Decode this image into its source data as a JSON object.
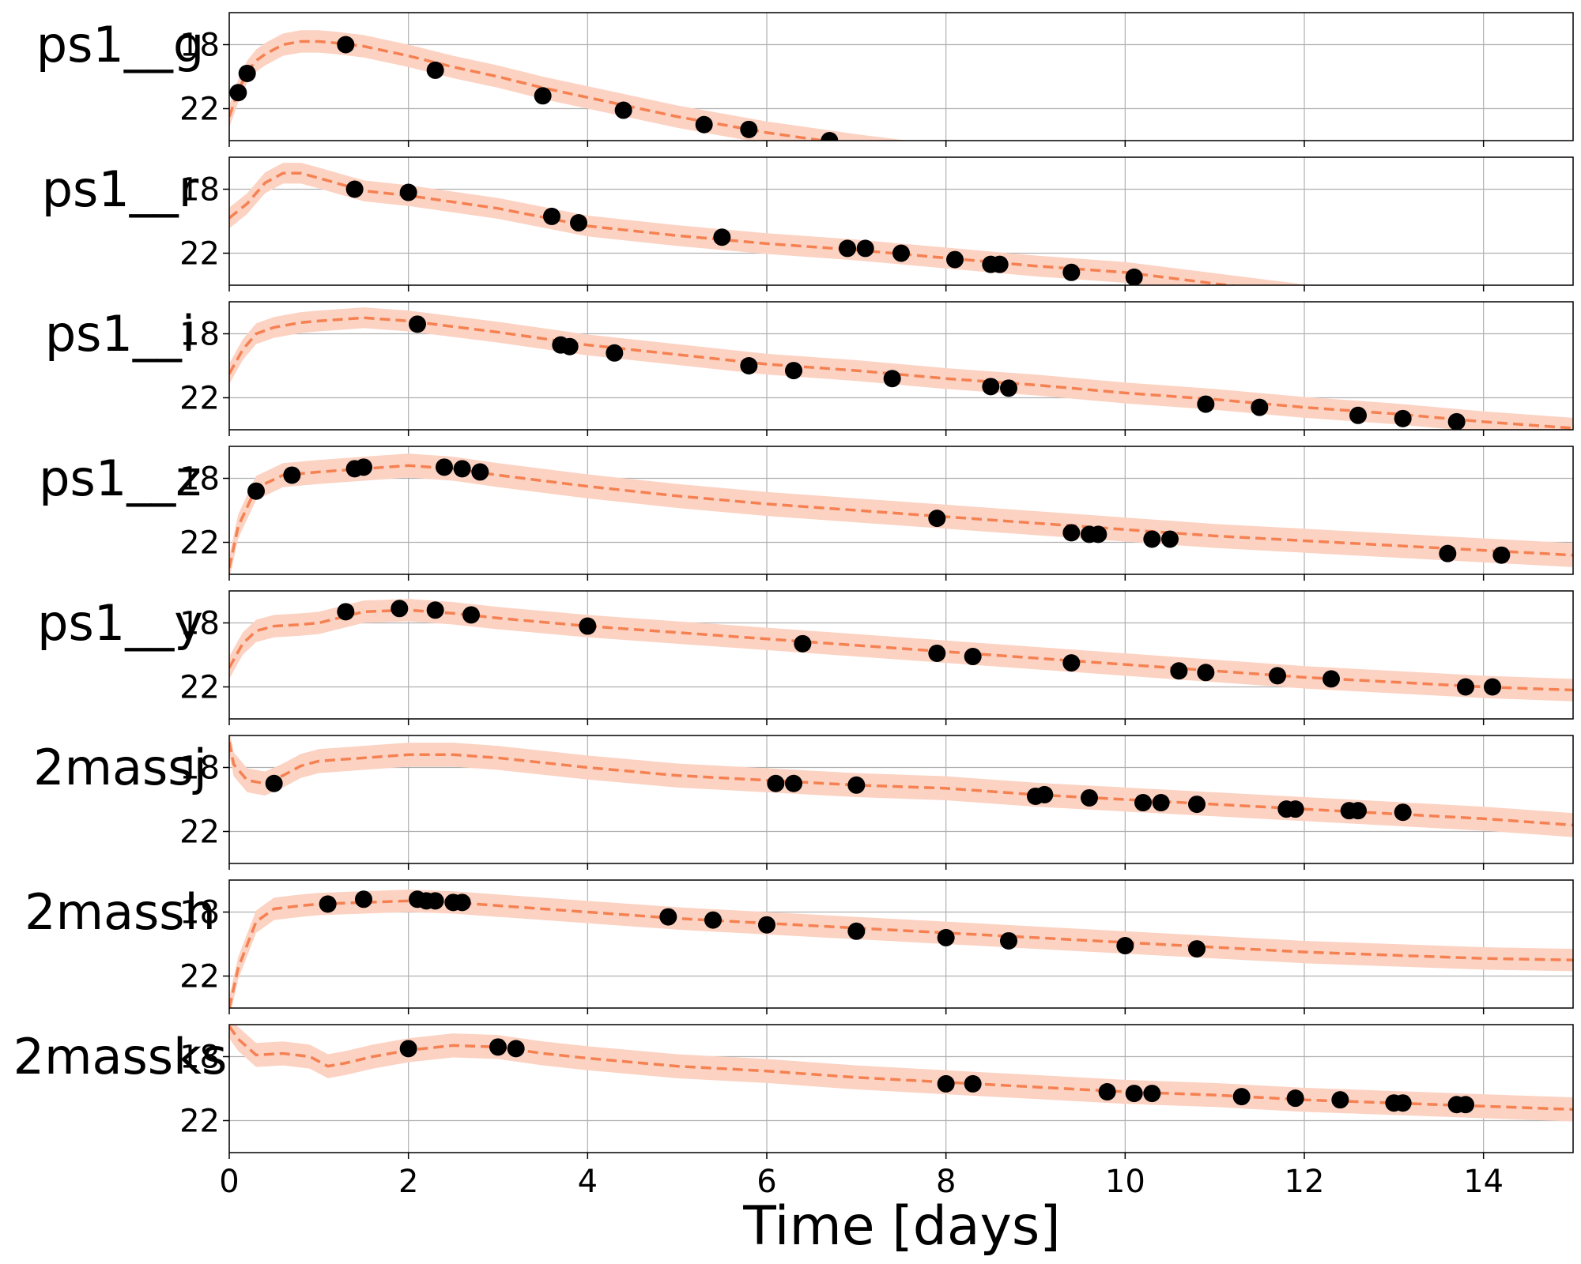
{
  "chart_data": {
    "type": "scatter",
    "xlabel": "Time [days]",
    "xlim": [
      0,
      15
    ],
    "x_ticks": [
      0,
      2,
      4,
      6,
      8,
      10,
      12,
      14
    ],
    "x_tick_labels": [
      "0",
      "2",
      "4",
      "6",
      "8",
      "10",
      "12",
      "14"
    ],
    "ylim": [
      24,
      16
    ],
    "y_inverted": true,
    "y_ticks": [
      18,
      22
    ],
    "y_tick_labels": [
      "18",
      "22"
    ],
    "grid": true,
    "colors": {
      "model_line": "#f58152",
      "model_band": "#fcd2c2",
      "points": "#000000",
      "grid": "#b0b0b0"
    },
    "panels": [
      {
        "label": "ps1__g",
        "points": {
          "x": [
            0.1,
            0.2,
            1.3,
            2.3,
            3.5,
            4.4,
            5.3,
            5.8,
            6.7
          ],
          "y": [
            21.0,
            19.8,
            18.0,
            19.6,
            21.2,
            22.1,
            23.0,
            23.3,
            24.0
          ]
        },
        "model": {
          "x": [
            0,
            0.1,
            0.2,
            0.3,
            0.4,
            0.5,
            0.6,
            0.8,
            1.0,
            1.2,
            1.5,
            2.0,
            2.5,
            3.0,
            3.5,
            4.0,
            5.0,
            6.0,
            7.0,
            8.0,
            9.0,
            10.0
          ],
          "y": [
            22.5,
            20.9,
            19.7,
            19.0,
            18.6,
            18.3,
            18.0,
            17.8,
            17.8,
            17.9,
            18.1,
            18.7,
            19.4,
            20.0,
            20.7,
            21.3,
            22.5,
            23.5,
            24.3,
            25.0,
            25.5,
            26.0
          ]
        },
        "band_width": 1.4
      },
      {
        "label": "ps1__r",
        "points": {
          "x": [
            1.4,
            2.0,
            3.6,
            3.9,
            5.5,
            6.9,
            7.1,
            7.5,
            8.1,
            8.5,
            8.6,
            9.4,
            10.1
          ],
          "y": [
            18.0,
            18.2,
            19.7,
            20.1,
            21.0,
            21.7,
            21.7,
            22.0,
            22.4,
            22.7,
            22.7,
            23.2,
            23.5
          ]
        },
        "model": {
          "x": [
            0,
            0.2,
            0.4,
            0.6,
            0.8,
            1.0,
            1.5,
            2.0,
            3.0,
            4.0,
            5.0,
            6.0,
            7.0,
            8.0,
            9.0,
            10.0,
            11.0,
            12.0,
            13.0,
            14.0,
            15.0
          ],
          "y": [
            19.8,
            18.9,
            17.6,
            17.0,
            17.0,
            17.3,
            18.1,
            18.4,
            19.2,
            20.3,
            20.9,
            21.4,
            21.8,
            22.3,
            22.8,
            23.2,
            23.9,
            24.6,
            25.2,
            25.8,
            26.4
          ]
        },
        "band_width": 1.3
      },
      {
        "label": "ps1__i",
        "points": {
          "x": [
            2.1,
            3.7,
            3.8,
            4.3,
            5.8,
            6.3,
            7.4,
            8.5,
            8.7,
            10.9,
            11.5,
            12.6,
            13.1,
            13.7
          ],
          "y": [
            17.4,
            18.7,
            18.8,
            19.2,
            20.0,
            20.3,
            20.8,
            21.3,
            21.4,
            22.4,
            22.6,
            23.1,
            23.3,
            23.5
          ]
        },
        "model": {
          "x": [
            0,
            0.15,
            0.3,
            0.5,
            0.8,
            1.0,
            1.5,
            2.0,
            3.0,
            4.0,
            5.0,
            6.0,
            7.0,
            8.0,
            9.0,
            10.0,
            11.0,
            12.0,
            13.0,
            14.0,
            15.0
          ],
          "y": [
            20.5,
            19.0,
            18.0,
            17.6,
            17.3,
            17.2,
            17.0,
            17.2,
            17.9,
            18.7,
            19.3,
            19.9,
            20.3,
            20.8,
            21.2,
            21.7,
            22.1,
            22.6,
            23.0,
            23.5,
            23.9
          ]
        },
        "band_width": 1.3
      },
      {
        "label": "ps1__z",
        "points": {
          "x": [
            0.3,
            0.7,
            1.4,
            1.5,
            2.4,
            2.6,
            2.8,
            7.9,
            9.4,
            9.6,
            9.7,
            10.3,
            10.5,
            13.6,
            14.2
          ],
          "y": [
            18.8,
            17.8,
            17.4,
            17.3,
            17.3,
            17.4,
            17.6,
            20.5,
            21.4,
            21.5,
            21.5,
            21.8,
            21.8,
            22.7,
            22.8
          ]
        },
        "model": {
          "x": [
            0,
            0.1,
            0.3,
            0.6,
            1.0,
            1.5,
            2.0,
            2.5,
            3.0,
            4.0,
            5.0,
            6.0,
            7.0,
            8.0,
            9.0,
            10.0,
            11.0,
            12.0,
            13.0,
            14.0,
            15.0
          ],
          "y": [
            23.6,
            21.0,
            18.6,
            17.8,
            17.6,
            17.4,
            17.2,
            17.4,
            17.8,
            18.5,
            19.1,
            19.6,
            20.0,
            20.4,
            20.8,
            21.2,
            21.6,
            21.9,
            22.2,
            22.5,
            22.8
          ]
        },
        "band_width": 1.5
      },
      {
        "label": "ps1__y",
        "points": {
          "x": [
            1.3,
            1.9,
            2.3,
            2.7,
            4.0,
            6.4,
            7.9,
            8.3,
            9.4,
            10.6,
            10.9,
            11.7,
            12.3,
            13.8,
            14.1
          ],
          "y": [
            17.3,
            17.1,
            17.2,
            17.5,
            18.2,
            19.3,
            19.9,
            20.1,
            20.5,
            21.0,
            21.1,
            21.3,
            21.5,
            22.0,
            22.0
          ]
        },
        "model": {
          "x": [
            0,
            0.15,
            0.3,
            0.5,
            0.8,
            1.0,
            1.5,
            2.0,
            2.5,
            3.0,
            4.0,
            5.0,
            6.0,
            7.0,
            8.0,
            9.0,
            10.0,
            11.0,
            12.0,
            13.0,
            14.0,
            15.0
          ],
          "y": [
            20.8,
            19.3,
            18.5,
            18.2,
            18.1,
            18.0,
            17.3,
            17.2,
            17.4,
            17.7,
            18.2,
            18.6,
            19.0,
            19.4,
            19.8,
            20.2,
            20.6,
            21.0,
            21.4,
            21.7,
            22.0,
            22.2
          ]
        },
        "band_width": 1.4
      },
      {
        "label": "2massj",
        "points": {
          "x": [
            0.5,
            6.1,
            6.3,
            7.0,
            9.0,
            9.1,
            9.6,
            10.2,
            10.4,
            10.8,
            11.8,
            11.9,
            12.5,
            12.6,
            13.1
          ],
          "y": [
            19.0,
            19.0,
            19.0,
            19.1,
            19.8,
            19.7,
            19.9,
            20.2,
            20.2,
            20.3,
            20.6,
            20.6,
            20.7,
            20.7,
            20.8
          ]
        },
        "model": {
          "x": [
            0,
            0.05,
            0.2,
            0.4,
            0.6,
            0.8,
            1.0,
            1.5,
            2.0,
            2.5,
            3.0,
            4.0,
            5.0,
            6.0,
            7.0,
            8.0,
            9.0,
            10.0,
            11.0,
            12.0,
            13.0,
            14.0,
            15.0
          ],
          "y": [
            16.4,
            17.8,
            18.8,
            19.0,
            18.5,
            17.9,
            17.6,
            17.4,
            17.2,
            17.2,
            17.4,
            18.0,
            18.5,
            18.8,
            19.1,
            19.3,
            19.7,
            20.0,
            20.3,
            20.6,
            20.9,
            21.2,
            21.6
          ]
        },
        "band_width": 1.5
      },
      {
        "label": "2massh",
        "points": {
          "x": [
            1.1,
            1.5,
            2.1,
            2.2,
            2.3,
            2.5,
            2.6,
            4.9,
            5.4,
            6.0,
            7.0,
            8.0,
            8.7,
            10.0,
            10.8
          ],
          "y": [
            17.5,
            17.2,
            17.2,
            17.3,
            17.3,
            17.4,
            17.4,
            18.3,
            18.5,
            18.8,
            19.2,
            19.6,
            19.8,
            20.1,
            20.3
          ]
        },
        "model": {
          "x": [
            0,
            0.1,
            0.3,
            0.5,
            0.8,
            1.0,
            1.5,
            2.0,
            2.5,
            3.0,
            4.0,
            5.0,
            6.0,
            7.0,
            8.0,
            9.0,
            10.0,
            11.0,
            12.0,
            13.0,
            14.0,
            15.0
          ],
          "y": [
            24.0,
            21.5,
            18.6,
            17.8,
            17.6,
            17.5,
            17.4,
            17.3,
            17.4,
            17.6,
            18.0,
            18.4,
            18.7,
            19.0,
            19.3,
            19.6,
            19.9,
            20.2,
            20.5,
            20.7,
            20.9,
            21.0
          ]
        },
        "band_width": 1.4
      },
      {
        "label": "2massks",
        "points": {
          "x": [
            2.0,
            3.0,
            3.2,
            8.0,
            8.3,
            9.8,
            10.1,
            10.3,
            11.3,
            11.9,
            12.4,
            13.0,
            13.1,
            13.7,
            13.8
          ],
          "y": [
            17.5,
            17.4,
            17.5,
            19.7,
            19.7,
            20.2,
            20.3,
            20.3,
            20.5,
            20.6,
            20.7,
            20.9,
            20.9,
            21.0,
            21.0
          ]
        },
        "model": {
          "x": [
            0,
            0.1,
            0.3,
            0.6,
            0.9,
            1.0,
            1.1,
            1.3,
            1.6,
            2.0,
            2.5,
            3.0,
            3.5,
            4.0,
            5.0,
            6.0,
            7.0,
            8.0,
            9.0,
            10.0,
            11.0,
            12.0,
            13.0,
            14.0,
            15.0
          ],
          "y": [
            16.1,
            16.9,
            17.9,
            17.8,
            18.0,
            18.3,
            18.6,
            18.4,
            18.0,
            17.6,
            17.3,
            17.4,
            17.8,
            18.1,
            18.6,
            18.9,
            19.3,
            19.6,
            19.9,
            20.2,
            20.4,
            20.7,
            20.9,
            21.1,
            21.3
          ]
        },
        "band_width": 1.5
      }
    ]
  }
}
